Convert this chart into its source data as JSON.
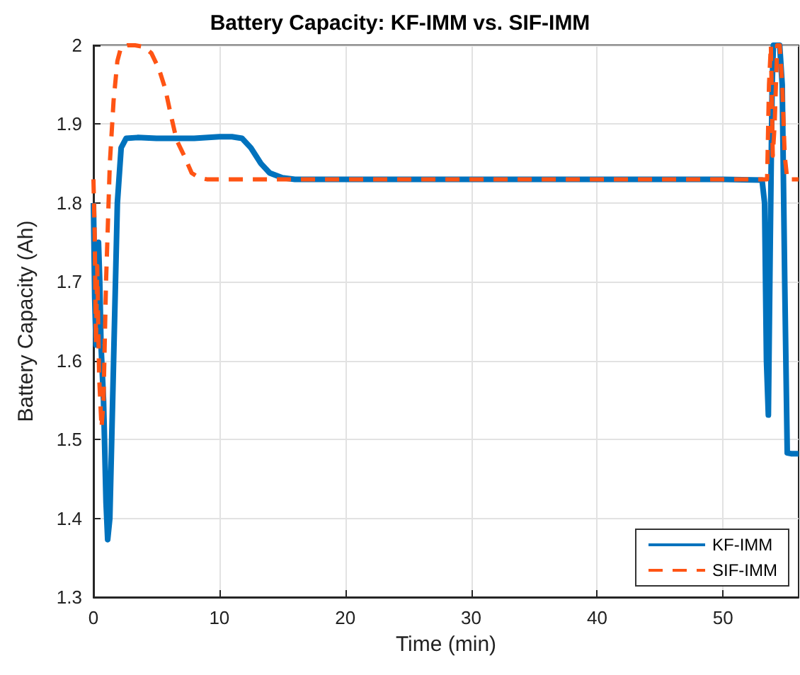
{
  "chart_data": {
    "type": "line",
    "title": "Battery Capacity: KF-IMM vs. SIF-IMM",
    "xlabel": "Time (min)",
    "ylabel": "Battery Capacity (Ah)",
    "xlim": [
      0,
      56
    ],
    "xticks": [
      0,
      10,
      20,
      30,
      40,
      50
    ],
    "ylim": [
      1.3,
      2
    ],
    "yticks": [
      1.3,
      1.4,
      1.5,
      1.6,
      1.7,
      1.8,
      1.9,
      2
    ],
    "grid": true,
    "legend": "bottom right",
    "marker": "none",
    "series": [
      {
        "name": "KF-IMM",
        "color": "#0072bd",
        "line_style": "solid",
        "x": [
          0,
          0.1,
          0.2,
          0.3,
          0.4,
          0.5,
          0.6,
          0.8,
          1.0,
          1.13,
          1.3,
          1.6,
          1.9,
          2.2,
          2.6,
          3.5,
          5,
          8,
          10,
          11,
          11.8,
          12.5,
          13.3,
          14,
          15,
          16,
          20,
          30,
          40,
          50,
          53.1,
          53.3,
          53.45,
          53.6,
          53.75,
          53.9,
          54.0,
          54.2,
          54.5,
          54.7,
          54.9,
          55.1,
          55.4,
          56
        ],
        "values": [
          1.8,
          1.68,
          1.62,
          1.66,
          1.75,
          1.7,
          1.62,
          1.55,
          1.42,
          1.373,
          1.4,
          1.6,
          1.8,
          1.87,
          1.882,
          1.883,
          1.882,
          1.882,
          1.884,
          1.884,
          1.882,
          1.87,
          1.85,
          1.838,
          1.832,
          1.83,
          1.83,
          1.83,
          1.83,
          1.83,
          1.829,
          1.8,
          1.6,
          1.531,
          1.75,
          1.95,
          2.0,
          2.0,
          2.0,
          1.95,
          1.7,
          1.483,
          1.482,
          1.482
        ]
      },
      {
        "name": "SIF-IMM",
        "color": "#ff5414",
        "line_style": "dashed",
        "x": [
          0,
          0.1,
          0.2,
          0.3,
          0.45,
          0.64,
          0.8,
          1.0,
          1.3,
          1.6,
          1.9,
          2.2,
          2.7,
          3.3,
          4,
          4.6,
          5.2,
          5.7,
          6.1,
          6.6,
          7.2,
          7.8,
          8.4,
          9,
          10,
          15,
          20,
          30,
          40,
          50,
          53.5,
          53.65,
          53.8,
          53.95,
          54.1,
          54.3,
          54.5,
          54.7,
          54.9,
          55.1,
          56
        ],
        "values": [
          1.83,
          1.76,
          1.62,
          1.72,
          1.58,
          1.515,
          1.55,
          1.7,
          1.85,
          1.93,
          1.98,
          1.998,
          2.0,
          2.0,
          1.998,
          1.99,
          1.97,
          1.945,
          1.915,
          1.88,
          1.86,
          1.838,
          1.832,
          1.83,
          1.83,
          1.83,
          1.83,
          1.83,
          1.83,
          1.83,
          1.83,
          1.95,
          2.0,
          1.86,
          1.9,
          2.0,
          2.0,
          1.95,
          1.86,
          1.83,
          1.83
        ]
      }
    ]
  }
}
